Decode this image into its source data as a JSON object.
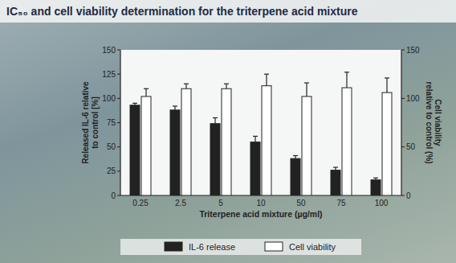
{
  "chart_data": {
    "type": "bar",
    "title": "IC₅₀ and cell viability determination for the triterpene acid mixture",
    "xlabel": "Triterpene acid mixture (µg/ml)",
    "ylabel": "Released IL-6 relative to control [%]",
    "y2label": "Cell viability relative to control (%)",
    "categories": [
      "0.25",
      "2.5",
      "5",
      "10",
      "50",
      "75",
      "100"
    ],
    "series": [
      {
        "name": "IL-6 release",
        "color": "#222222",
        "values": [
          93,
          88,
          74,
          55,
          38,
          26,
          16
        ],
        "errors": [
          2,
          4,
          6,
          6,
          3,
          3,
          2
        ]
      },
      {
        "name": "Cell viability",
        "color": "#ffffff",
        "axis": "y2",
        "values": [
          102,
          110,
          110,
          113,
          102,
          111,
          106
        ],
        "errors": [
          8,
          5,
          5,
          12,
          14,
          16,
          15
        ]
      }
    ],
    "ylim": [
      0,
      150
    ],
    "yticks": [
      0,
      25,
      50,
      75,
      100,
      125,
      150
    ],
    "y2lim": [
      0,
      150
    ],
    "y2ticks": [
      0,
      50,
      100,
      150
    ],
    "legend": "bottom",
    "grid": false
  }
}
